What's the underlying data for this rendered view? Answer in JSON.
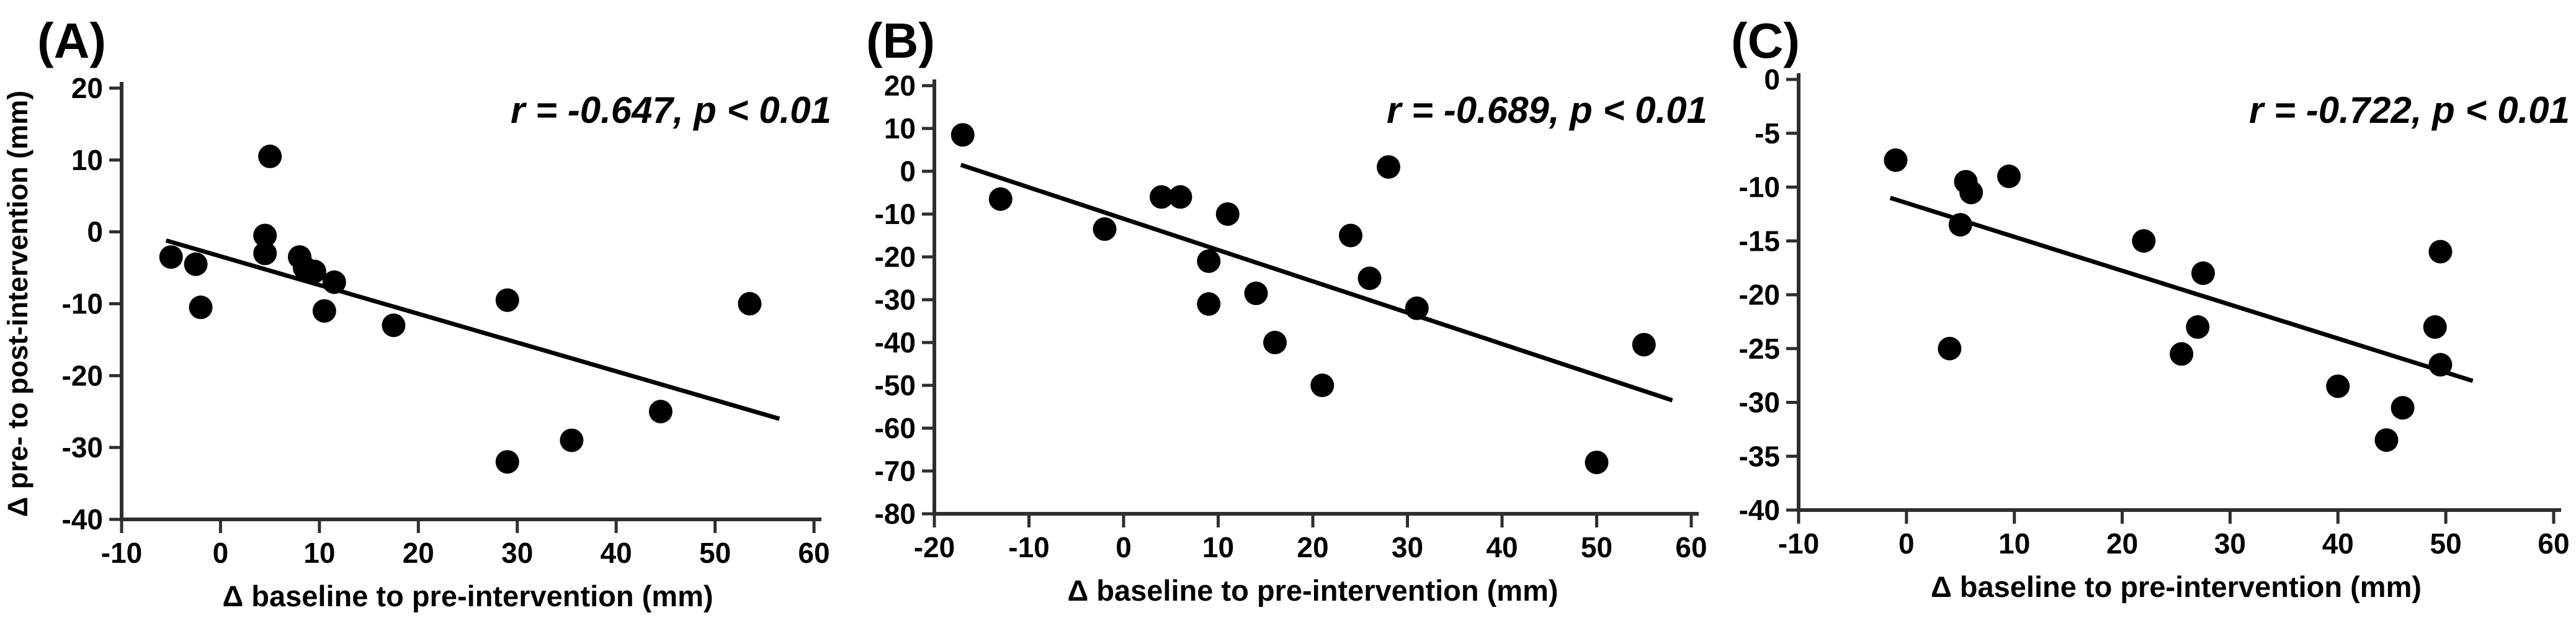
{
  "figure": {
    "background": "#ffffff",
    "marker_color": "#000000",
    "axis_color": "#2e2e2e",
    "panel_labels": [
      "(A)",
      "(B)",
      "(C)"
    ]
  },
  "chart_data": [
    {
      "type": "scatter",
      "panel_label": "(A)",
      "annotation": "r = -0.647, p < 0.01",
      "xlabel": "Δ baseline to pre-intervention (mm)",
      "ylabel": "Δ pre- to post-intervention (mm)",
      "xlim": [
        -10,
        60
      ],
      "ylim": [
        -40,
        20
      ],
      "xticks": [
        -10,
        0,
        10,
        20,
        30,
        40,
        50,
        60
      ],
      "yticks": [
        20,
        10,
        0,
        -10,
        -20,
        -30,
        -40
      ],
      "legend": "none",
      "grid": false,
      "points": [
        [
          -5,
          -3.5
        ],
        [
          -2.5,
          -4.5
        ],
        [
          -2,
          -10.5
        ],
        [
          5,
          10.5
        ],
        [
          4.5,
          -0.5
        ],
        [
          4.5,
          -3
        ],
        [
          8,
          -3.5
        ],
        [
          8.5,
          -5
        ],
        [
          9.5,
          -5.5
        ],
        [
          11.5,
          -7
        ],
        [
          10.5,
          -11
        ],
        [
          17.5,
          -13
        ],
        [
          29,
          -9.5
        ],
        [
          29,
          -32
        ],
        [
          35.5,
          -29
        ],
        [
          44.5,
          -25
        ],
        [
          53.5,
          -10
        ]
      ],
      "trendline": {
        "x1": -5.5,
        "y1": -1.2,
        "x2": 56.5,
        "y2": -26
      }
    },
    {
      "type": "scatter",
      "panel_label": "(B)",
      "annotation": "r = -0.689, p < 0.01",
      "xlabel": "Δ baseline to pre-intervention (mm)",
      "ylabel": "",
      "xlim": [
        -20,
        60
      ],
      "ylim": [
        -80,
        20
      ],
      "xticks": [
        -20,
        -10,
        0,
        10,
        20,
        30,
        40,
        50,
        60
      ],
      "yticks": [
        20,
        10,
        0,
        -10,
        -20,
        -30,
        -40,
        -50,
        -60,
        -70,
        -80
      ],
      "legend": "none",
      "grid": false,
      "points": [
        [
          -17,
          8.5
        ],
        [
          -13,
          -6.5
        ],
        [
          -2,
          -13.5
        ],
        [
          4,
          -6
        ],
        [
          6,
          -6
        ],
        [
          11,
          -10
        ],
        [
          9,
          -21
        ],
        [
          9,
          -31
        ],
        [
          14,
          -28.5
        ],
        [
          16,
          -40
        ],
        [
          21,
          -50
        ],
        [
          24,
          -15
        ],
        [
          26,
          -25
        ],
        [
          28,
          1
        ],
        [
          31,
          -32
        ],
        [
          50,
          -68
        ],
        [
          55,
          -40.5
        ]
      ],
      "trendline": {
        "x1": -17.2,
        "y1": 1.5,
        "x2": 58,
        "y2": -53.5
      }
    },
    {
      "type": "scatter",
      "panel_label": "(C)",
      "annotation": "r = -0.722, p < 0.01",
      "xlabel": "Δ baseline to pre-intervention (mm)",
      "ylabel": "",
      "xlim": [
        -10,
        60
      ],
      "ylim": [
        -40,
        0
      ],
      "xticks": [
        -10,
        0,
        10,
        20,
        30,
        40,
        50,
        60
      ],
      "yticks": [
        0,
        -5,
        -10,
        -15,
        -20,
        -25,
        -30,
        -35,
        -40
      ],
      "legend": "none",
      "grid": false,
      "points": [
        [
          -1,
          -7.5
        ],
        [
          4,
          -25
        ],
        [
          5.5,
          -9.5
        ],
        [
          6,
          -10.5
        ],
        [
          5,
          -13.5
        ],
        [
          9.5,
          -9
        ],
        [
          22,
          -15
        ],
        [
          25.5,
          -25.5
        ],
        [
          27.5,
          -18
        ],
        [
          27,
          -23
        ],
        [
          40,
          -28.5
        ],
        [
          44.5,
          -33.5
        ],
        [
          46,
          -30.5
        ],
        [
          49.5,
          -16
        ],
        [
          49,
          -23
        ],
        [
          49.5,
          -26.5
        ]
      ],
      "trendline": {
        "x1": -1.5,
        "y1": -11,
        "x2": 52.5,
        "y2": -28
      }
    }
  ]
}
